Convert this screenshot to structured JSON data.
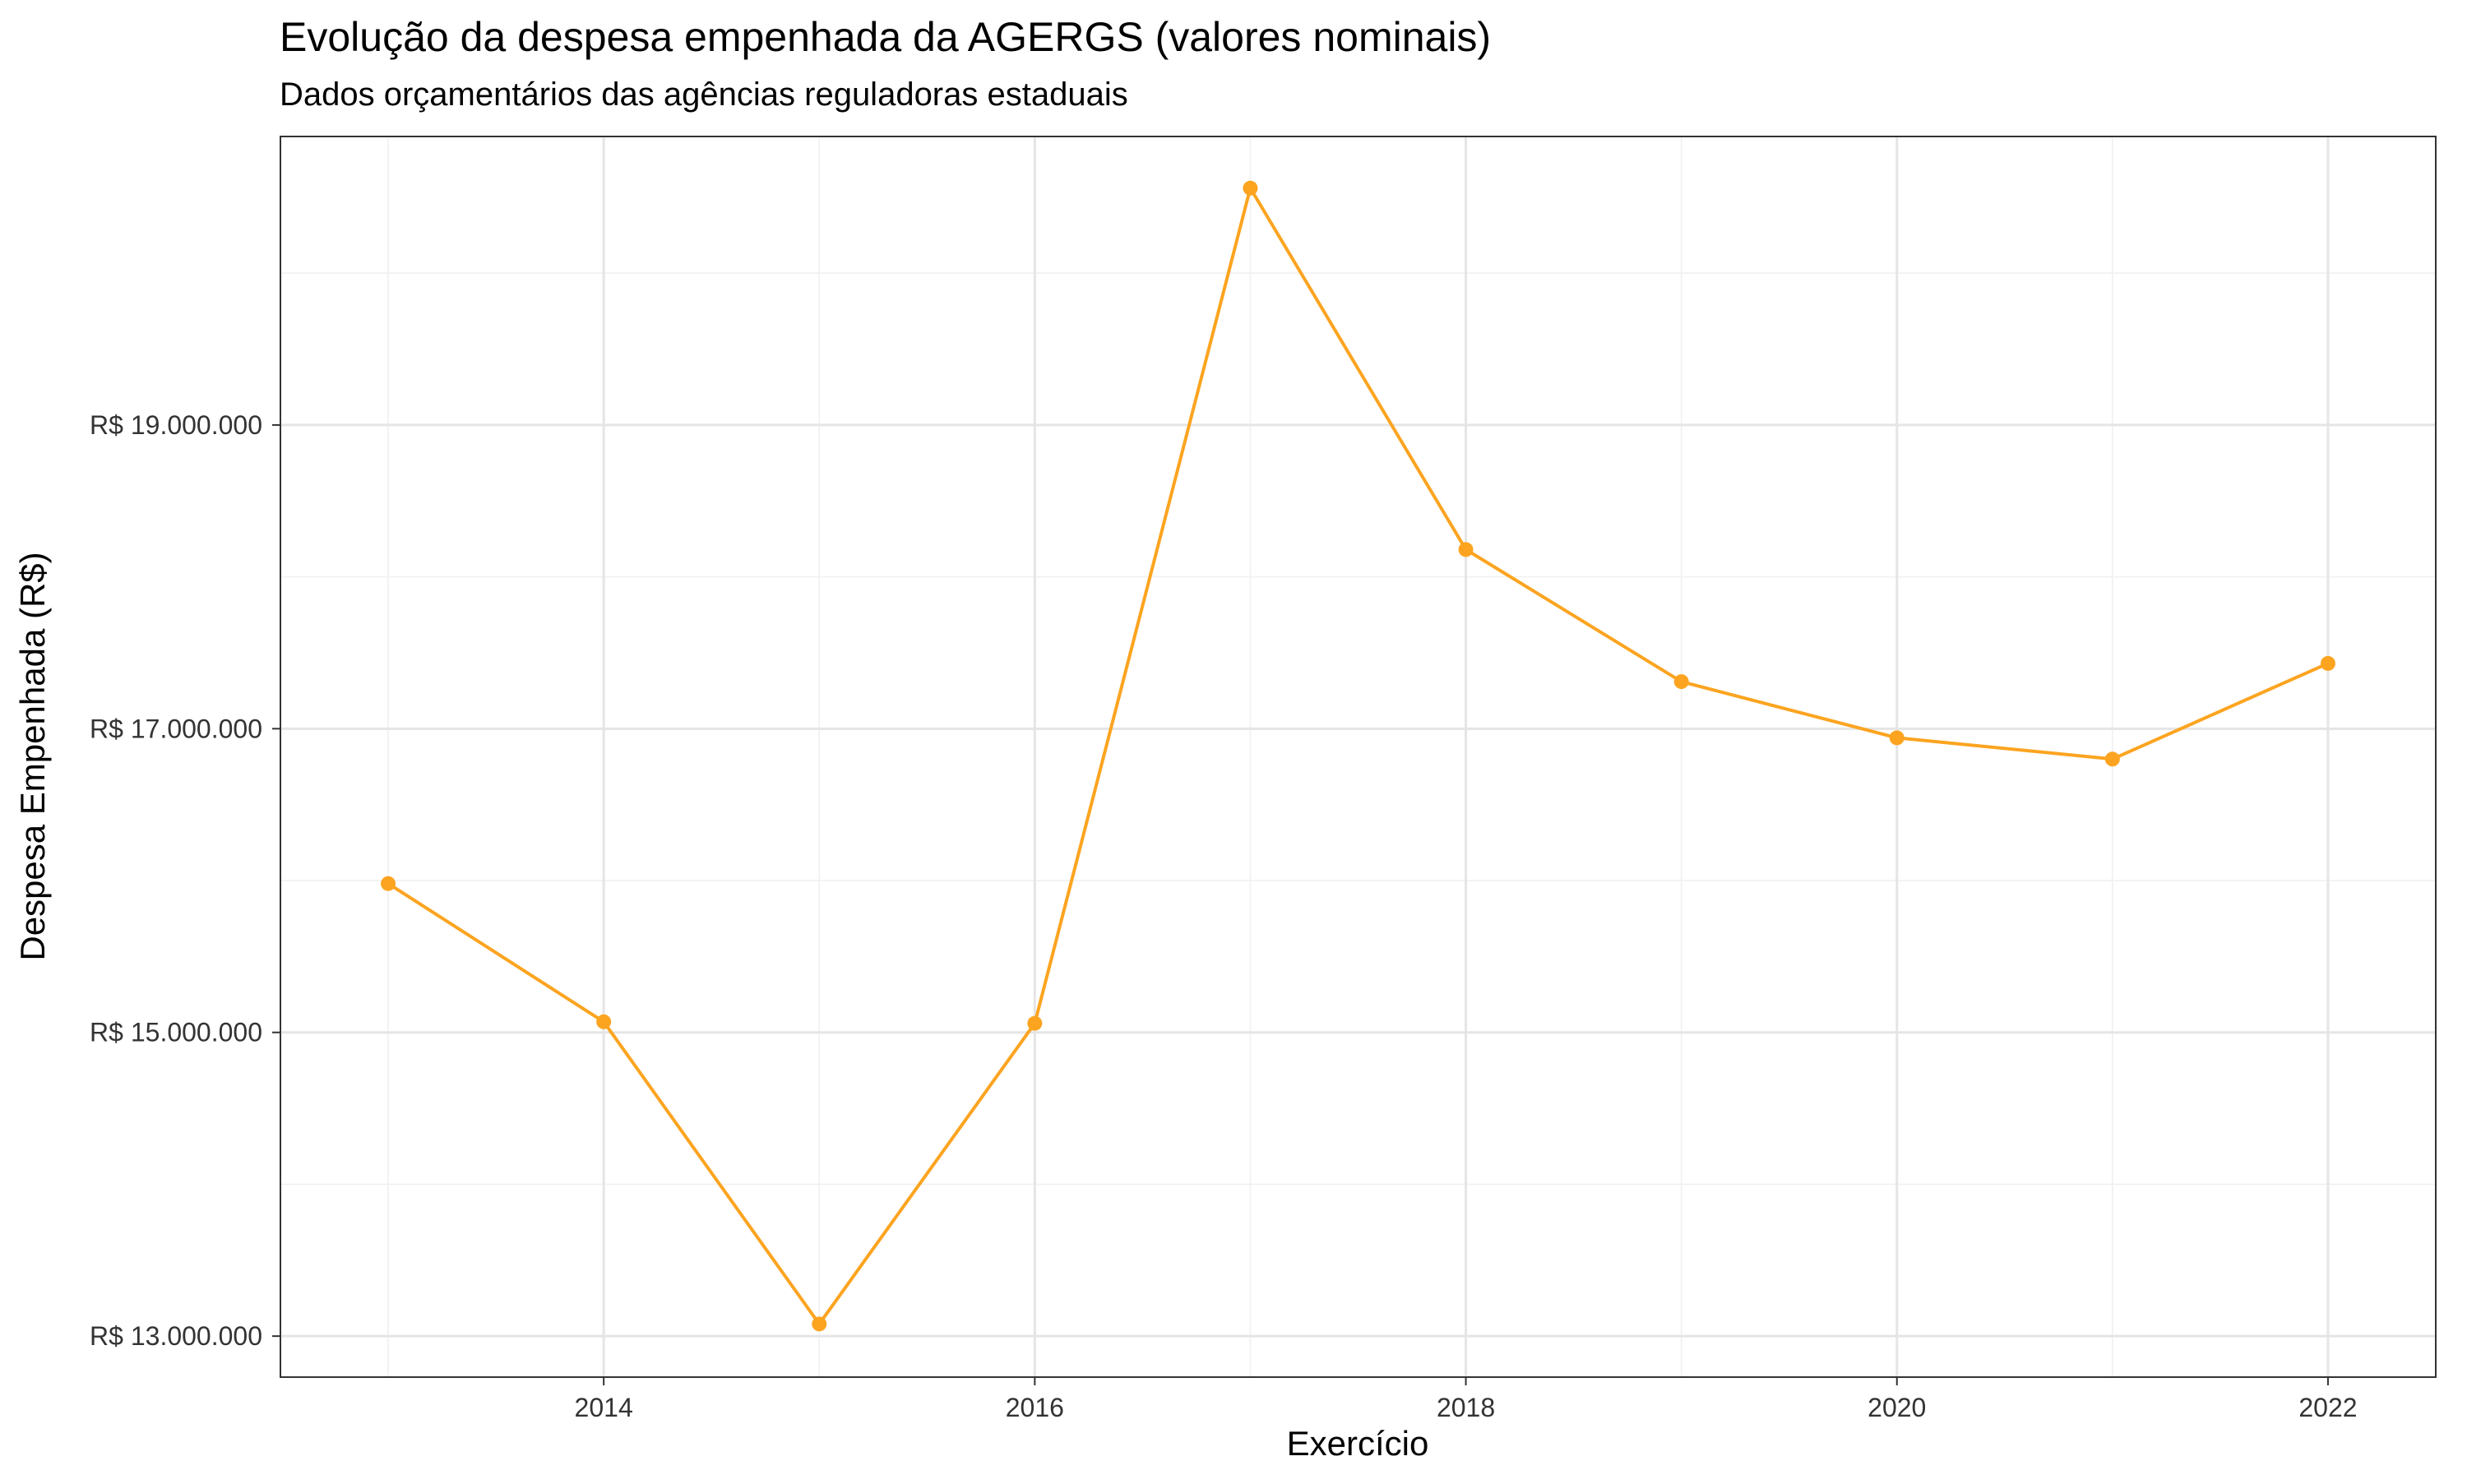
{
  "chart_data": {
    "type": "line",
    "title": "Evolução da despesa empenhada da AGERGS (valores nominais)",
    "subtitle": "Dados orçamentários das agências reguladoras estaduais",
    "xlabel": "Exercício",
    "ylabel": "Despesa Empenhada (R$)",
    "x": [
      2013,
      2014,
      2015,
      2016,
      2017,
      2018,
      2019,
      2020,
      2021,
      2022
    ],
    "series": [
      {
        "values": [
          15980000,
          15070000,
          13080000,
          15060000,
          20560000,
          18180000,
          17310000,
          16940000,
          16800000,
          17430000
        ]
      }
    ],
    "xlim": [
      2012.5,
      2022.5
    ],
    "ylim": [
      12730000,
      20900000
    ],
    "x_ticks": [
      2014,
      2016,
      2018,
      2020,
      2022
    ],
    "x_tick_labels": [
      "2014",
      "2016",
      "2018",
      "2020",
      "2022"
    ],
    "x_minor_ticks": [
      2013,
      2015,
      2017,
      2019,
      2021
    ],
    "y_ticks": [
      13000000,
      15000000,
      17000000,
      19000000
    ],
    "y_tick_labels": [
      "R$ 13.000.000",
      "R$ 15.000.000",
      "R$ 17.000.000",
      "R$ 19.000.000"
    ],
    "y_minor_ticks": [
      14000000,
      16000000,
      18000000,
      20000000
    ],
    "grid": true,
    "legend": "none",
    "colors": {
      "line": "#FCA420",
      "grid_major": "#e5e5e5",
      "grid_minor": "#f0f0f0",
      "border": "#333333"
    }
  }
}
